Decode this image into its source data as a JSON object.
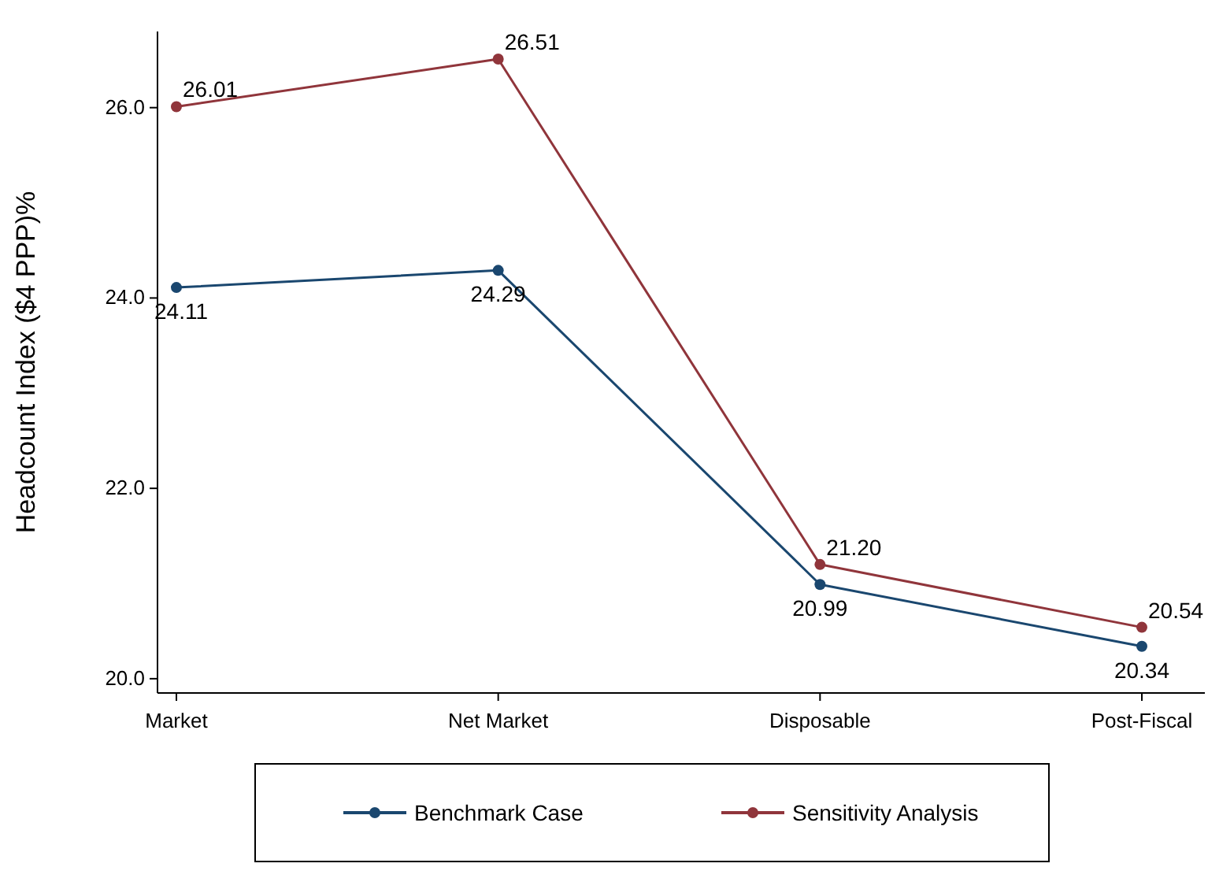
{
  "chart_data": {
    "type": "line",
    "ylabel": "Headcount Index ($4 PPP)%",
    "categories": [
      "Market",
      "Net Market",
      "Disposable",
      "Post-Fiscal"
    ],
    "series": [
      {
        "name": "Benchmark Case",
        "color": "#1a476f",
        "values": [
          24.11,
          24.29,
          20.99,
          20.34
        ],
        "value_labels": [
          "24.11",
          "24.29",
          "20.99",
          "20.34"
        ]
      },
      {
        "name": "Sensitivity Analysis",
        "color": "#90353b",
        "values": [
          26.01,
          26.51,
          21.2,
          20.54
        ],
        "value_labels": [
          "26.01",
          "26.51",
          "21.20",
          "20.54"
        ]
      }
    ],
    "ylim": [
      19.85,
      26.8
    ],
    "yticks": [
      {
        "value": 20,
        "label": "20.0"
      },
      {
        "value": 22,
        "label": "22.0"
      },
      {
        "value": 24,
        "label": "24.0"
      },
      {
        "value": 26,
        "label": "26.0"
      }
    ],
    "grid": false,
    "legend": "bottom",
    "marker": "circle",
    "line_style": "solid"
  }
}
